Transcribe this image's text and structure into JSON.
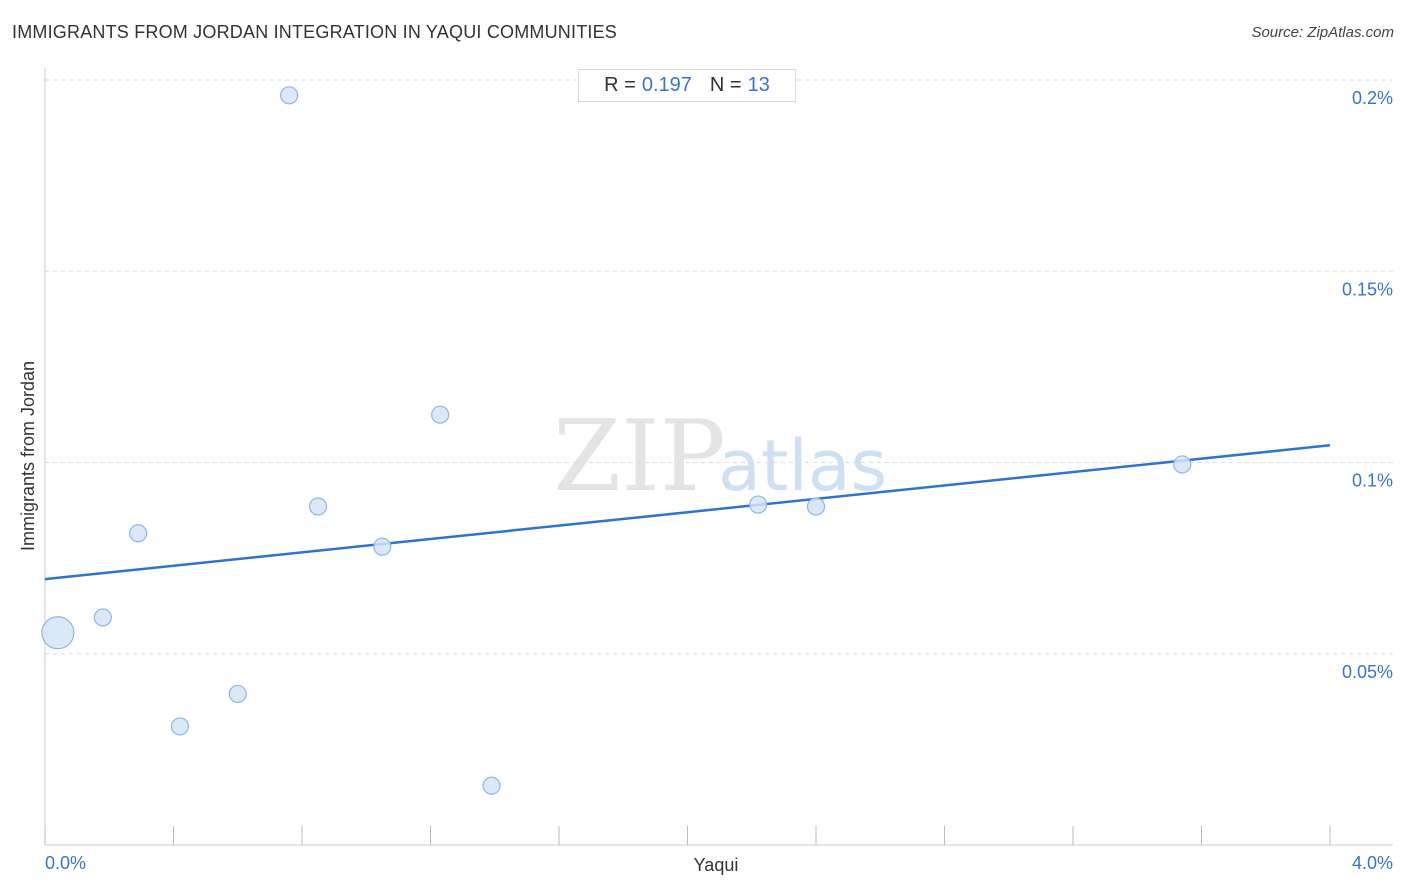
{
  "header": {
    "title": "IMMIGRANTS FROM JORDAN INTEGRATION IN YAQUI COMMUNITIES",
    "source": "Source: ZipAtlas.com"
  },
  "stats": {
    "r_label": "R =",
    "r_value": "0.197",
    "n_label": "N =",
    "n_value": "13"
  },
  "watermark": {
    "zip": "ZIP",
    "atlas": "atlas"
  },
  "colors": {
    "point_fill": "#d4e4f7",
    "point_stroke": "#8fb6e4",
    "trend": "#2e73d0",
    "tick_text": "#3a74c9",
    "grid": "#dddddd"
  },
  "chart_data": {
    "type": "scatter",
    "xlabel": "Yaqui",
    "ylabel": "Immigrants from Jordan",
    "xlim": [
      0.0,
      4.2
    ],
    "ylim": [
      0.0,
      0.2
    ],
    "x_tick_labels": [
      {
        "value": 0.0,
        "label": "0.0%"
      },
      {
        "value": 4.0,
        "label": "4.0%"
      }
    ],
    "y_tick_labels": [
      {
        "value": 0.05,
        "label": "0.05%"
      },
      {
        "value": 0.1,
        "label": "0.1%"
      },
      {
        "value": 0.15,
        "label": "0.15%"
      },
      {
        "value": 0.2,
        "label": "0.2%"
      }
    ],
    "points": [
      {
        "x": 0.04,
        "y": 0.0555,
        "size": "large"
      },
      {
        "x": 0.18,
        "y": 0.0595,
        "size": "normal"
      },
      {
        "x": 0.29,
        "y": 0.0815,
        "size": "normal"
      },
      {
        "x": 0.42,
        "y": 0.031,
        "size": "normal"
      },
      {
        "x": 0.6,
        "y": 0.0395,
        "size": "normal"
      },
      {
        "x": 0.76,
        "y": 0.196,
        "size": "normal"
      },
      {
        "x": 0.85,
        "y": 0.0885,
        "size": "normal"
      },
      {
        "x": 1.05,
        "y": 0.078,
        "size": "normal"
      },
      {
        "x": 1.23,
        "y": 0.1125,
        "size": "normal"
      },
      {
        "x": 1.39,
        "y": 0.0155,
        "size": "normal"
      },
      {
        "x": 2.22,
        "y": 0.089,
        "size": "normal"
      },
      {
        "x": 2.4,
        "y": 0.0885,
        "size": "normal"
      },
      {
        "x": 3.54,
        "y": 0.0995,
        "size": "normal"
      }
    ],
    "trendline": {
      "x": [
        0.0,
        4.0
      ],
      "y": [
        0.0695,
        0.1045
      ]
    },
    "grid": "horizontal-dashed",
    "legend": "none"
  }
}
